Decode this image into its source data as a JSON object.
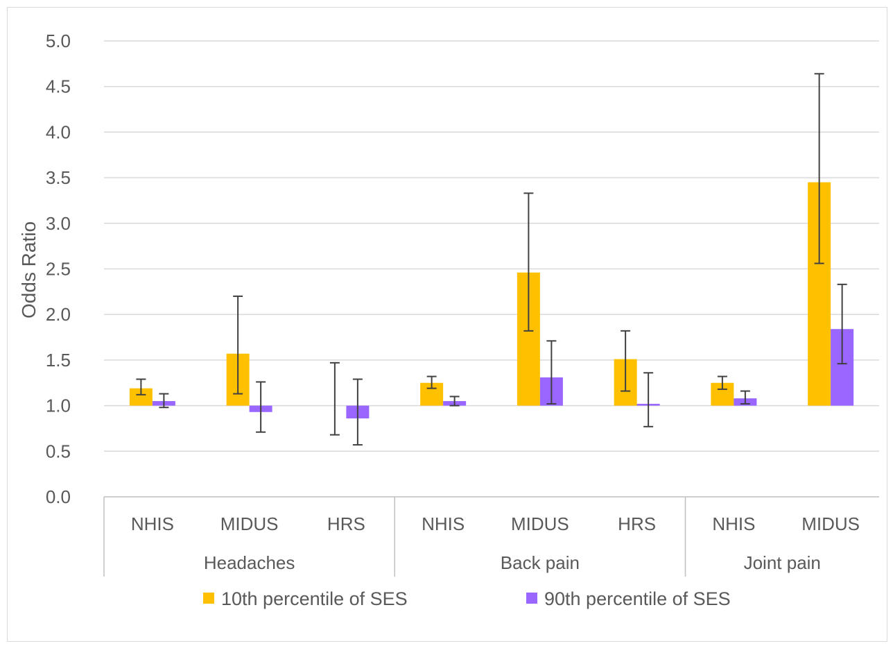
{
  "chart_data": {
    "type": "bar",
    "title": "",
    "xlabel": "",
    "ylabel": "Odds Ratio",
    "ylim": [
      0,
      5
    ],
    "yticks": [
      "0.0",
      "0.5",
      "1.0",
      "1.5",
      "2.0",
      "2.5",
      "3.0",
      "3.5",
      "4.0",
      "4.5",
      "5.0"
    ],
    "bar_baseline": 1.0,
    "grid": true,
    "legend_position": "bottom",
    "groups": [
      {
        "label": "Headaches",
        "categories": [
          "NHIS",
          "MIDUS",
          "HRS"
        ]
      },
      {
        "label": "Back pain",
        "categories": [
          "NHIS",
          "MIDUS",
          "HRS"
        ]
      },
      {
        "label": "Joint pain",
        "categories": [
          "NHIS",
          "MIDUS"
        ]
      }
    ],
    "series": [
      {
        "name": "10th percentile of SES",
        "color": "#FFC000",
        "values": [
          1.19,
          1.57,
          1.0,
          1.25,
          2.46,
          1.51,
          1.25,
          3.45
        ],
        "error_low": [
          1.12,
          1.13,
          0.68,
          1.19,
          1.82,
          1.16,
          1.18,
          2.56
        ],
        "error_high": [
          1.29,
          2.2,
          1.47,
          1.32,
          3.33,
          1.82,
          1.32,
          4.64
        ]
      },
      {
        "name": "90th percentile of SES",
        "color": "#9966FF",
        "values": [
          1.05,
          0.93,
          0.86,
          1.05,
          1.31,
          1.02,
          1.08,
          1.84
        ],
        "error_low": [
          0.98,
          0.71,
          0.57,
          1.0,
          1.02,
          0.77,
          1.02,
          1.46
        ],
        "error_high": [
          1.13,
          1.26,
          1.29,
          1.1,
          1.71,
          1.36,
          1.16,
          2.33
        ]
      }
    ]
  }
}
